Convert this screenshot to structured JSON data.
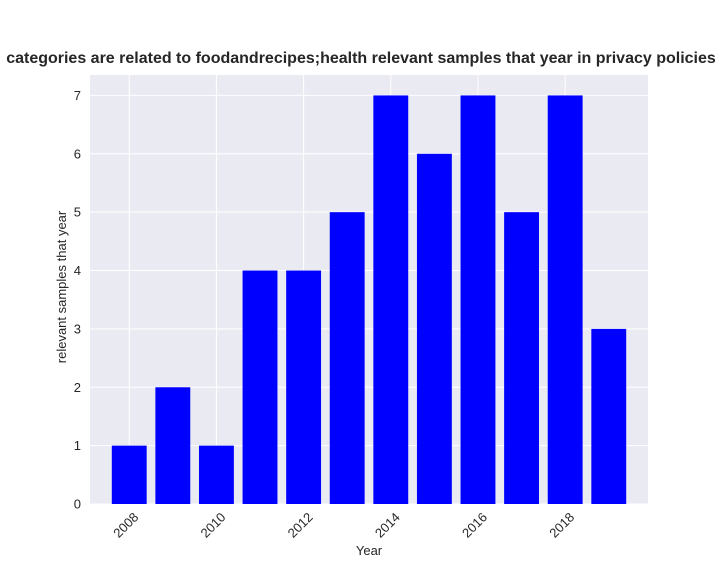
{
  "chart_data": {
    "type": "bar",
    "title": "categories are related to foodandrecipes;health relevant samples that year in privacy policies",
    "xlabel": "Year",
    "ylabel": "relevant samples that year",
    "categories": [
      "2008",
      "2009",
      "2010",
      "2011",
      "2012",
      "2013",
      "2014",
      "2015",
      "2016",
      "2017",
      "2018",
      "2019"
    ],
    "values": [
      1,
      2,
      1,
      4,
      4,
      5,
      7,
      6,
      7,
      5,
      7,
      3
    ],
    "x_tick_labels": [
      "2008",
      "2010",
      "2012",
      "2014",
      "2016",
      "2018"
    ],
    "x_tick_values": [
      2008,
      2010,
      2012,
      2014,
      2016,
      2018
    ],
    "y_tick_labels": [
      "0",
      "1",
      "2",
      "3",
      "4",
      "5",
      "6",
      "7"
    ],
    "ylim": [
      0,
      7.35
    ],
    "grid": true,
    "colors": {
      "bar": "#0000ff",
      "plot_background": "#eaeaf2",
      "grid": "#ffffff",
      "text": "#262626"
    }
  }
}
